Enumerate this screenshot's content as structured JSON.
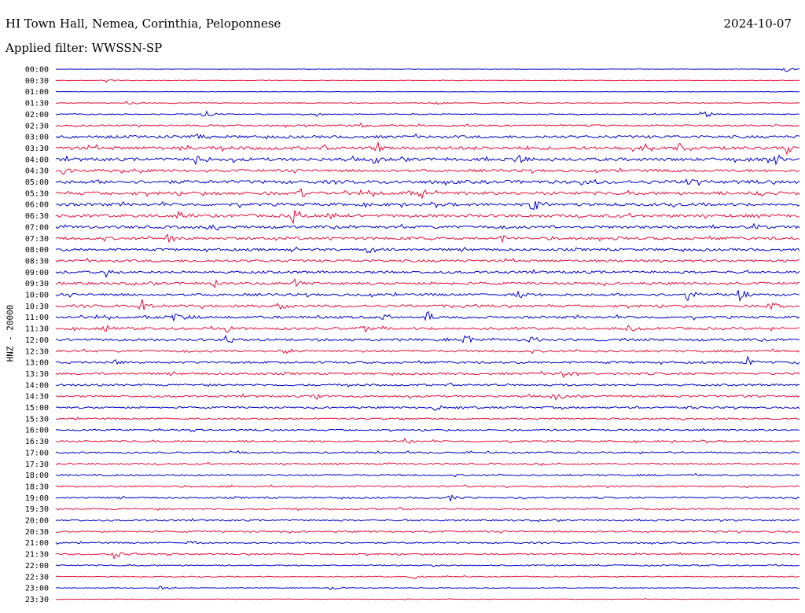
{
  "header": {
    "station": "HI Town Hall, Nemea, Corinthia, Peloponnese",
    "date": "2024-10-07",
    "filter_label": "Applied filter: WWSSN-SP"
  },
  "chart_data": {
    "type": "line",
    "channel_label": "HNZ - 20000",
    "row_labels": [
      "00:00",
      "00:30",
      "01:00",
      "01:30",
      "02:00",
      "02:30",
      "03:00",
      "03:30",
      "04:00",
      "04:30",
      "05:00",
      "05:30",
      "06:00",
      "06:30",
      "07:00",
      "07:30",
      "08:00",
      "08:30",
      "09:00",
      "09:30",
      "10:00",
      "10:30",
      "11:00",
      "11:30",
      "12:00",
      "12:30",
      "13:00",
      "13:30",
      "14:00",
      "14:30",
      "15:00",
      "15:30",
      "16:00",
      "16:30",
      "17:00",
      "17:30",
      "18:00",
      "18:30",
      "19:00",
      "19:30",
      "20:00",
      "20:30",
      "21:00",
      "21:30",
      "22:00",
      "22:30",
      "23:00",
      "23:30"
    ],
    "trace_colors": [
      "#0000cc",
      "#e8103c"
    ],
    "noise_level": [
      0.2,
      0.3,
      0.2,
      0.5,
      0.6,
      1.0,
      1.6,
      2.0,
      1.9,
      1.6,
      2.0,
      2.0,
      1.8,
      1.8,
      1.7,
      1.7,
      1.5,
      1.5,
      1.5,
      1.5,
      1.5,
      1.5,
      1.5,
      1.5,
      1.5,
      1.3,
      1.3,
      1.3,
      1.2,
      1.2,
      1.1,
      1.0,
      1.0,
      1.0,
      1.0,
      1.0,
      1.0,
      1.0,
      1.0,
      1.0,
      1.0,
      1.0,
      0.9,
      0.9,
      0.8,
      0.6,
      0.4,
      0.4
    ],
    "events": [
      {
        "row": 0,
        "x": 0.98,
        "amp": 5
      },
      {
        "row": 1,
        "x": 0.066,
        "amp": 4
      },
      {
        "row": 3,
        "x": 0.097,
        "amp": 4
      },
      {
        "row": 3,
        "x": 0.51,
        "amp": 3
      },
      {
        "row": 4,
        "x": 0.2,
        "amp": 6
      },
      {
        "row": 4,
        "x": 0.87,
        "amp": 6
      },
      {
        "row": 4,
        "x": 0.35,
        "amp": 3
      },
      {
        "row": 5,
        "x": 0.41,
        "amp": 4
      },
      {
        "row": 6,
        "x": 0.19,
        "amp": 5
      },
      {
        "row": 7,
        "x": 0.43,
        "amp": 7
      },
      {
        "row": 7,
        "x": 0.17,
        "amp": 5
      },
      {
        "row": 7,
        "x": 0.79,
        "amp": 6
      },
      {
        "row": 7,
        "x": 0.84,
        "amp": 7
      },
      {
        "row": 7,
        "x": 0.98,
        "amp": 9
      },
      {
        "row": 8,
        "x": 0.19,
        "amp": 8
      },
      {
        "row": 8,
        "x": 0.43,
        "amp": 7
      },
      {
        "row": 8,
        "x": 0.62,
        "amp": 6
      },
      {
        "row": 8,
        "x": 0.97,
        "amp": 9
      },
      {
        "row": 9,
        "x": 0.01,
        "amp": 5
      },
      {
        "row": 9,
        "x": 0.09,
        "amp": 4
      },
      {
        "row": 9,
        "x": 0.83,
        "amp": 5
      },
      {
        "row": 10,
        "x": 0.71,
        "amp": 8
      },
      {
        "row": 10,
        "x": 0.85,
        "amp": 5
      },
      {
        "row": 11,
        "x": 0.33,
        "amp": 7
      },
      {
        "row": 11,
        "x": 0.49,
        "amp": 8
      },
      {
        "row": 11,
        "x": 0.94,
        "amp": 5
      },
      {
        "row": 12,
        "x": 0.64,
        "amp": 13
      },
      {
        "row": 13,
        "x": 0.16,
        "amp": 6
      },
      {
        "row": 13,
        "x": 0.32,
        "amp": 9
      },
      {
        "row": 13,
        "x": 0.37,
        "amp": 6
      },
      {
        "row": 14,
        "x": 0.21,
        "amp": 6
      },
      {
        "row": 14,
        "x": 0.94,
        "amp": 5
      },
      {
        "row": 15,
        "x": 0.15,
        "amp": 9
      },
      {
        "row": 15,
        "x": 0.6,
        "amp": 6
      },
      {
        "row": 15,
        "x": 0.73,
        "amp": 7
      },
      {
        "row": 16,
        "x": 0.42,
        "amp": 8
      },
      {
        "row": 18,
        "x": 0.066,
        "amp": 6
      },
      {
        "row": 19,
        "x": 0.21,
        "amp": 6
      },
      {
        "row": 19,
        "x": 0.32,
        "amp": 6
      },
      {
        "row": 20,
        "x": 0.62,
        "amp": 6
      },
      {
        "row": 20,
        "x": 0.85,
        "amp": 7
      },
      {
        "row": 20,
        "x": 0.92,
        "amp": 8
      },
      {
        "row": 21,
        "x": 0.115,
        "amp": 8
      },
      {
        "row": 21,
        "x": 0.3,
        "amp": 7
      },
      {
        "row": 21,
        "x": 0.55,
        "amp": 6
      },
      {
        "row": 21,
        "x": 0.96,
        "amp": 9
      },
      {
        "row": 22,
        "x": 0.158,
        "amp": 8
      },
      {
        "row": 22,
        "x": 0.18,
        "amp": 7
      },
      {
        "row": 22,
        "x": 0.44,
        "amp": 6
      },
      {
        "row": 22,
        "x": 0.5,
        "amp": 9
      },
      {
        "row": 23,
        "x": 0.065,
        "amp": 5
      },
      {
        "row": 23,
        "x": 0.23,
        "amp": 5
      },
      {
        "row": 23,
        "x": 0.41,
        "amp": 5
      },
      {
        "row": 23,
        "x": 0.77,
        "amp": 5
      },
      {
        "row": 24,
        "x": 0.23,
        "amp": 8
      },
      {
        "row": 24,
        "x": 0.55,
        "amp": 7
      },
      {
        "row": 24,
        "x": 0.64,
        "amp": 7
      },
      {
        "row": 25,
        "x": 0.31,
        "amp": 5
      },
      {
        "row": 26,
        "x": 0.08,
        "amp": 5
      },
      {
        "row": 26,
        "x": 0.93,
        "amp": 7
      },
      {
        "row": 27,
        "x": 0.68,
        "amp": 6
      },
      {
        "row": 29,
        "x": 0.35,
        "amp": 4
      },
      {
        "row": 29,
        "x": 0.67,
        "amp": 6
      },
      {
        "row": 30,
        "x": 0.51,
        "amp": 6
      },
      {
        "row": 30,
        "x": 0.85,
        "amp": 5
      },
      {
        "row": 33,
        "x": 0.47,
        "amp": 5
      },
      {
        "row": 38,
        "x": 0.53,
        "amp": 4
      },
      {
        "row": 42,
        "x": 0.18,
        "amp": 3
      },
      {
        "row": 43,
        "x": 0.077,
        "amp": 8
      },
      {
        "row": 45,
        "x": 0.48,
        "amp": 3
      },
      {
        "row": 46,
        "x": 0.37,
        "amp": 3
      },
      {
        "row": 46,
        "x": 0.14,
        "amp": 3
      }
    ]
  }
}
